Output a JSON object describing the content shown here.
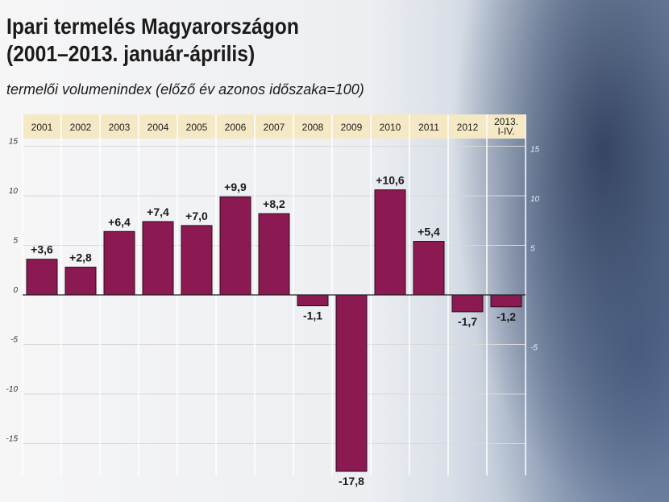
{
  "header": {
    "title_line1": "Ipari termelés Magyarországon",
    "title_line2": "(2001–2013. január-április)",
    "subtitle": "termelői volumenindex (előző év azonos időszaka=100)"
  },
  "colors": {
    "bar": "#8c1a52",
    "year_band": "#f5e8c4",
    "grid": "#d8d8d8"
  },
  "chart_data": {
    "type": "bar",
    "categories": [
      "2001",
      "2002",
      "2003",
      "2004",
      "2005",
      "2006",
      "2007",
      "2008",
      "2009",
      "2010",
      "2011",
      "2012",
      "2013.\nI-IV."
    ],
    "values": [
      3.6,
      2.8,
      6.4,
      7.4,
      7.0,
      9.9,
      8.2,
      -1.1,
      -17.8,
      10.6,
      5.4,
      -1.7,
      -1.2
    ],
    "data_labels": [
      "+3,6",
      "+2,8",
      "+6,4",
      "+7,4",
      "+7,0",
      "+9,9",
      "+8,2",
      "-1,1",
      "-17,8",
      "+10,6",
      "+5,4",
      "-1,7",
      "-1,2"
    ],
    "ylim": [
      -18,
      15
    ],
    "yticks": [
      15,
      10,
      5,
      0,
      -5,
      -10,
      -15
    ],
    "ytick_labels_left": [
      "15",
      "10",
      "5",
      "0",
      "-5",
      "-10",
      "-15"
    ],
    "ytick_labels_right": [
      "15",
      "10",
      "5",
      "",
      "-5",
      "",
      ""
    ],
    "grid": true,
    "legend": "none"
  }
}
